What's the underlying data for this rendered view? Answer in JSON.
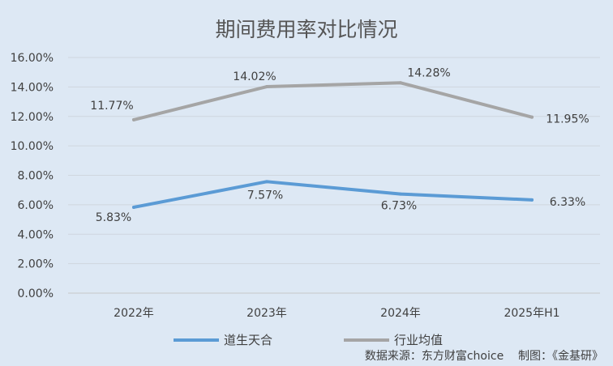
{
  "chart_data": {
    "type": "line",
    "title": "期间费用率对比情况",
    "xlabel": "",
    "ylabel": "",
    "categories": [
      "2022年",
      "2023年",
      "2024年",
      "2025年H1"
    ],
    "y_ticks": [
      "0.00%",
      "2.00%",
      "4.00%",
      "6.00%",
      "8.00%",
      "10.00%",
      "12.00%",
      "14.00%",
      "16.00%"
    ],
    "ylim": [
      0,
      16
    ],
    "grid": true,
    "legend_position": "bottom-left",
    "series": [
      {
        "name": "道生天合",
        "color": "#5b9bd5",
        "values": [
          5.83,
          7.57,
          6.73,
          6.33
        ],
        "labels": [
          "5.83%",
          "7.57%",
          "6.73%",
          "6.33%"
        ]
      },
      {
        "name": "行业均值",
        "color": "#a5a5a5",
        "values": [
          11.77,
          14.02,
          14.28,
          11.95
        ],
        "labels": [
          "11.77%",
          "14.02%",
          "14.28%",
          "11.95%"
        ]
      }
    ],
    "source": "数据来源：东方财富choice    制图：《金基研》"
  }
}
